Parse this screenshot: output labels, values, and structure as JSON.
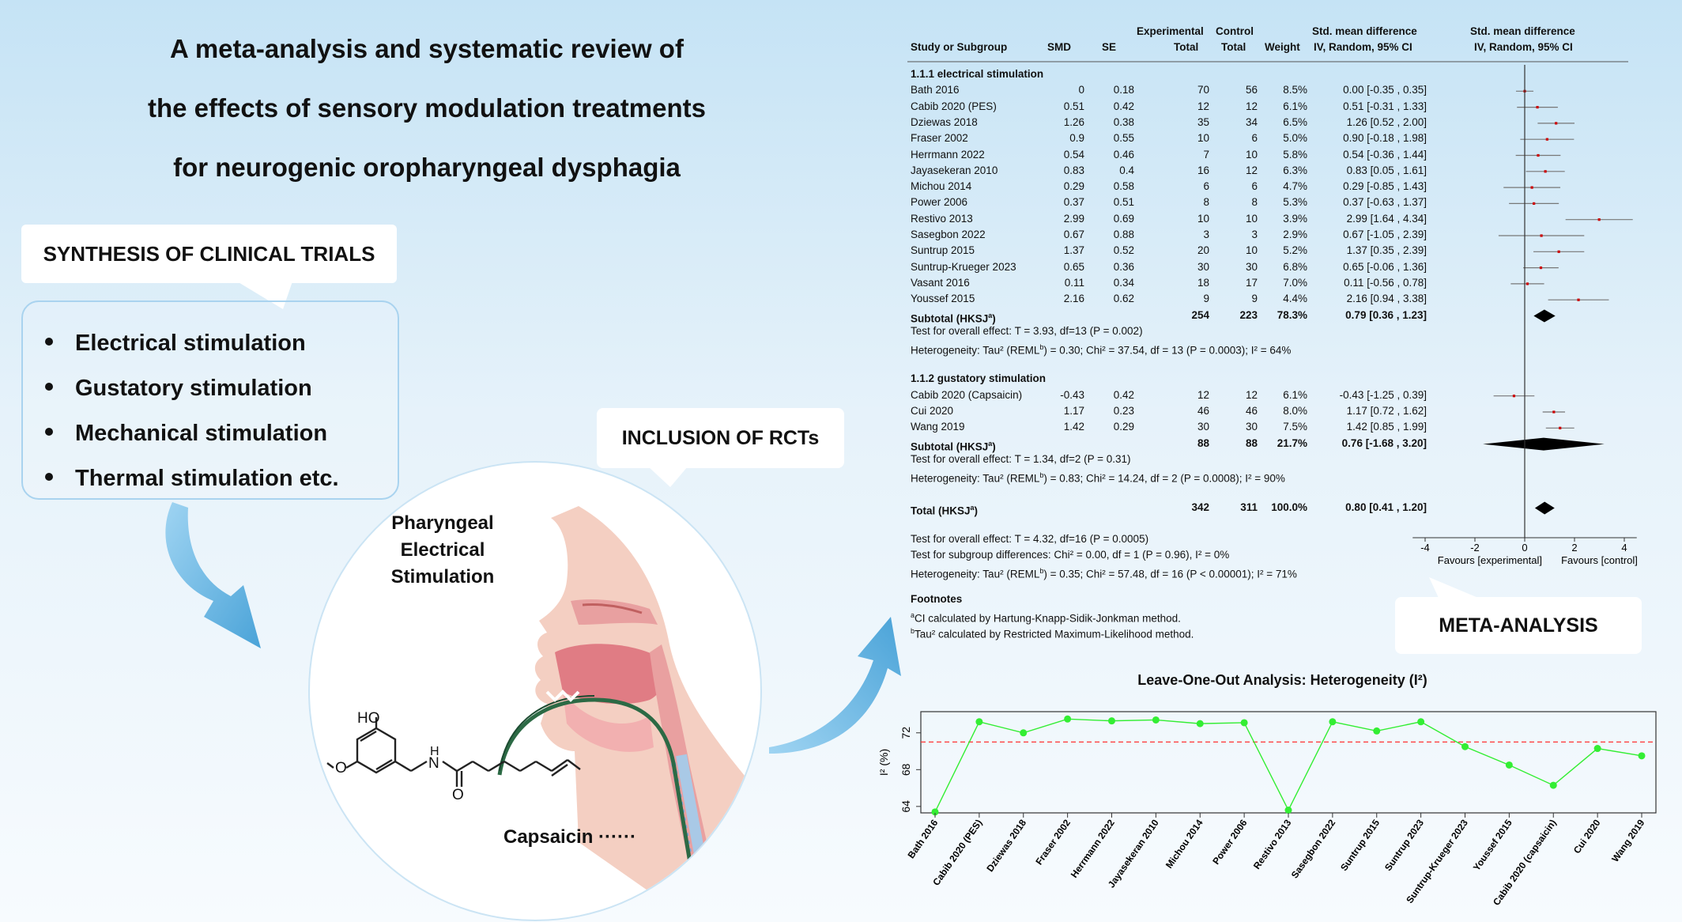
{
  "title_lines": [
    "A meta-analysis and systematic review of",
    "the effects of sensory modulation treatments",
    "for neurogenic oropharyngeal dysphagia"
  ],
  "synthesis": {
    "heading": "SYNTHESIS OF CLINICAL TRIALS",
    "items": [
      "Electrical stimulation",
      "Gustatory stimulation",
      "Mechanical stimulation",
      "Thermal stimulation etc."
    ]
  },
  "inclusion": {
    "heading": "INCLUSION OF RCTs",
    "pes_label": [
      "Pharyngeal",
      "Electrical",
      "Stimulation"
    ],
    "capsaicin_label": "Capsaicin ······",
    "molecule_labels": {
      "ho": "HO",
      "o": "O",
      "h": "H",
      "n": "N",
      "o2": "O"
    }
  },
  "meta": {
    "heading": "META-ANALYSIS"
  },
  "colors": {
    "arrow": "#5fb3e2",
    "callout_border": "#a9d3ef",
    "loo_line": "#33ee33",
    "loo_ref": "#ff3333",
    "ci_marker": "#cc0000"
  },
  "forest": {
    "headers": {
      "study": "Study or Subgroup",
      "smd": "SMD",
      "se": "SE",
      "exp_1": "Experimental",
      "exp_2": "Total",
      "ctl_1": "Control",
      "ctl_2": "Total",
      "weight": "Weight",
      "ci_1": "Std. mean difference",
      "ci_2": "IV, Random, 95% CI",
      "plot_1": "Std. mean difference",
      "plot_2": "IV, Random, 95% CI"
    },
    "groups": [
      {
        "label": "1.1.1 electrical stimulation",
        "studies": [
          {
            "name": "Bath 2016",
            "smd": "0",
            "se": "0.18",
            "exp": "70",
            "ctl": "56",
            "weight": "8.5%",
            "ci": "0.00 [-0.35 , 0.35]",
            "est": 0.0,
            "lo": -0.35,
            "hi": 0.35
          },
          {
            "name": "Cabib 2020 (PES)",
            "smd": "0.51",
            "se": "0.42",
            "exp": "12",
            "ctl": "12",
            "weight": "6.1%",
            "ci": "0.51 [-0.31 , 1.33]",
            "est": 0.51,
            "lo": -0.31,
            "hi": 1.33
          },
          {
            "name": "Dziewas 2018",
            "smd": "1.26",
            "se": "0.38",
            "exp": "35",
            "ctl": "34",
            "weight": "6.5%",
            "ci": "1.26 [0.52 , 2.00]",
            "est": 1.26,
            "lo": 0.52,
            "hi": 2.0
          },
          {
            "name": "Fraser 2002",
            "smd": "0.9",
            "se": "0.55",
            "exp": "10",
            "ctl": "6",
            "weight": "5.0%",
            "ci": "0.90 [-0.18 , 1.98]",
            "est": 0.9,
            "lo": -0.18,
            "hi": 1.98
          },
          {
            "name": "Herrmann 2022",
            "smd": "0.54",
            "se": "0.46",
            "exp": "7",
            "ctl": "10",
            "weight": "5.8%",
            "ci": "0.54 [-0.36 , 1.44]",
            "est": 0.54,
            "lo": -0.36,
            "hi": 1.44
          },
          {
            "name": "Jayasekeran 2010",
            "smd": "0.83",
            "se": "0.4",
            "exp": "16",
            "ctl": "12",
            "weight": "6.3%",
            "ci": "0.83 [0.05 , 1.61]",
            "est": 0.83,
            "lo": 0.05,
            "hi": 1.61
          },
          {
            "name": "Michou 2014",
            "smd": "0.29",
            "se": "0.58",
            "exp": "6",
            "ctl": "6",
            "weight": "4.7%",
            "ci": "0.29 [-0.85 , 1.43]",
            "est": 0.29,
            "lo": -0.85,
            "hi": 1.43
          },
          {
            "name": "Power 2006",
            "smd": "0.37",
            "se": "0.51",
            "exp": "8",
            "ctl": "8",
            "weight": "5.3%",
            "ci": "0.37 [-0.63 , 1.37]",
            "est": 0.37,
            "lo": -0.63,
            "hi": 1.37
          },
          {
            "name": "Restivo 2013",
            "smd": "2.99",
            "se": "0.69",
            "exp": "10",
            "ctl": "10",
            "weight": "3.9%",
            "ci": "2.99 [1.64 , 4.34]",
            "est": 2.99,
            "lo": 1.64,
            "hi": 4.34
          },
          {
            "name": "Sasegbon 2022",
            "smd": "0.67",
            "se": "0.88",
            "exp": "3",
            "ctl": "3",
            "weight": "2.9%",
            "ci": "0.67 [-1.05 , 2.39]",
            "est": 0.67,
            "lo": -1.05,
            "hi": 2.39
          },
          {
            "name": "Suntrup 2015",
            "smd": "1.37",
            "se": "0.52",
            "exp": "20",
            "ctl": "10",
            "weight": "5.2%",
            "ci": "1.37 [0.35 , 2.39]",
            "est": 1.37,
            "lo": 0.35,
            "hi": 2.39
          },
          {
            "name": "Suntrup-Krueger 2023",
            "smd": "0.65",
            "se": "0.36",
            "exp": "30",
            "ctl": "30",
            "weight": "6.8%",
            "ci": "0.65 [-0.06 , 1.36]",
            "est": 0.65,
            "lo": -0.06,
            "hi": 1.36
          },
          {
            "name": "Vasant 2016",
            "smd": "0.11",
            "se": "0.34",
            "exp": "18",
            "ctl": "17",
            "weight": "7.0%",
            "ci": "0.11 [-0.56 , 0.78]",
            "est": 0.11,
            "lo": -0.56,
            "hi": 0.78
          },
          {
            "name": "Youssef 2015",
            "smd": "2.16",
            "se": "0.62",
            "exp": "9",
            "ctl": "9",
            "weight": "4.4%",
            "ci": "2.16 [0.94 , 3.38]",
            "est": 2.16,
            "lo": 0.94,
            "hi": 3.38
          }
        ],
        "subtotal": {
          "label": "Subtotal (HKSJ",
          "sup": "a",
          "close": ")",
          "exp": "254",
          "ctl": "223",
          "weight": "78.3%",
          "ci": "0.79 [0.36 , 1.23]",
          "est": 0.79,
          "lo": 0.36,
          "hi": 1.23
        },
        "test": "Test for overall effect: T = 3.93, df=13 (P = 0.002)",
        "het_a": "Heterogeneity: Tau² (REML",
        "het_sup": "b",
        "het_b": ") = 0.30; Chi² = 37.54, df = 13 (P = 0.0003); I² = 64%"
      },
      {
        "label": "1.1.2 gustatory stimulation",
        "studies": [
          {
            "name": "Cabib 2020 (Capsaicin)",
            "smd": "-0.43",
            "se": "0.42",
            "exp": "12",
            "ctl": "12",
            "weight": "6.1%",
            "ci": "-0.43 [-1.25 , 0.39]",
            "est": -0.43,
            "lo": -1.25,
            "hi": 0.39
          },
          {
            "name": "Cui 2020",
            "smd": "1.17",
            "se": "0.23",
            "exp": "46",
            "ctl": "46",
            "weight": "8.0%",
            "ci": "1.17 [0.72 , 1.62]",
            "est": 1.17,
            "lo": 0.72,
            "hi": 1.62
          },
          {
            "name": "Wang 2019",
            "smd": "1.42",
            "se": "0.29",
            "exp": "30",
            "ctl": "30",
            "weight": "7.5%",
            "ci": "1.42 [0.85 , 1.99]",
            "est": 1.42,
            "lo": 0.85,
            "hi": 1.99
          }
        ],
        "subtotal": {
          "label": "Subtotal (HKSJ",
          "sup": "a",
          "close": ")",
          "exp": "88",
          "ctl": "88",
          "weight": "21.7%",
          "ci": "0.76 [-1.68 , 3.20]",
          "est": 0.76,
          "lo": -1.68,
          "hi": 3.2
        },
        "test": "Test for overall effect: T = 1.34, df=2 (P = 0.31)",
        "het_a": "Heterogeneity: Tau² (REML",
        "het_sup": "b",
        "het_b": ") = 0.83; Chi² = 14.24, df = 2 (P = 0.0008); I² = 90%"
      }
    ],
    "total": {
      "label": "Total (HKSJ",
      "sup": "a",
      "close": ")",
      "exp": "342",
      "ctl": "311",
      "weight": "100.0%",
      "ci": "0.80 [0.41 , 1.20]",
      "est": 0.8,
      "lo": 0.41,
      "hi": 1.2
    },
    "overall_test": "Test for overall effect: T = 4.32, df=16 (P = 0.0005)",
    "subgroup_test": "Test for subgroup differences: Chi² = 0.00, df = 1 (P = 0.96), I² = 0%",
    "overall_het_a": "Heterogeneity: Tau² (REML",
    "overall_het_sup": "b",
    "overall_het_b": ") = 0.35; Chi² = 57.48, df = 16 (P < 0.00001); I² = 71%",
    "axis": {
      "ticks": [
        -4,
        -2,
        0,
        2,
        4
      ],
      "tick_labels": [
        "-4",
        "-2",
        "0",
        "2",
        "4"
      ],
      "range": [
        -4.5,
        4.5
      ]
    },
    "favours_left": "Favours [experimental]",
    "favours_right": "Favours [control]",
    "footnotes_title": "Footnotes",
    "footnote_a_sup": "a",
    "footnote_a": "CI calculated by Hartung-Knapp-Sidik-Jonkman method.",
    "footnote_b_sup": "b",
    "footnote_b": "Tau² calculated by Restricted Maximum-Likelihood method."
  },
  "chart_data": {
    "type": "line",
    "title": "Leave-One-Out Analysis: Heterogeneity (I²)",
    "xlabel": "",
    "ylabel": "I² (%)",
    "categories": [
      "Bath 2016",
      "Cabib 2020 (PES)",
      "Dziewas 2018",
      "Fraser 2002",
      "Herrmann 2022",
      "Jayasekeran 2010",
      "Michou 2014",
      "Power 2006",
      "Restivo 2013",
      "Sasegbon 2022",
      "Suntrup 2015",
      "Suntrup 2023",
      "Suntrup-Krueger 2023",
      "Youssef 2015",
      "Cabib 2020 (capsaicin)",
      "Cui 2020",
      "Wang 2019"
    ],
    "values": [
      63.4,
      73.2,
      72.0,
      73.5,
      73.3,
      73.4,
      73.0,
      73.1,
      63.6,
      73.2,
      72.2,
      73.2,
      70.5,
      68.5,
      66.3,
      70.3,
      69.5
    ],
    "ylim": [
      63.3,
      74.3
    ],
    "yticks": [
      64,
      68,
      72
    ],
    "ytick_labels": [
      "64",
      "68",
      "72"
    ],
    "reference_line": 71,
    "grid": false
  }
}
